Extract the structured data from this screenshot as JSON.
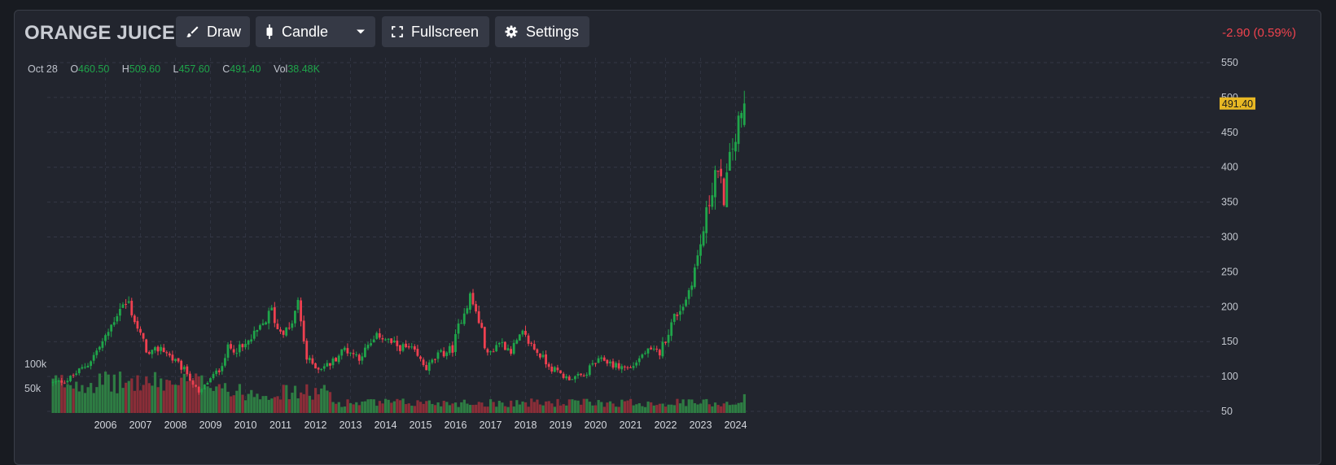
{
  "toolbar": {
    "symbol": "ORANGE JUICE",
    "draw_label": "Draw",
    "candle_label": "Candle",
    "fullscreen_label": "Fullscreen",
    "settings_label": "Settings",
    "change_text": "-2.90 (0.59%)"
  },
  "ohlc": {
    "date": "Oct 28",
    "o_label": "O",
    "o": "460.50",
    "h_label": "H",
    "h": "509.60",
    "l_label": "L",
    "l": "457.60",
    "c_label": "C",
    "c": "491.40",
    "vol_label": "Vol",
    "vol": "38.48K"
  },
  "colors": {
    "up": "#1fa54a",
    "down": "#ef4050",
    "up_volume": "#2e7d43",
    "down_volume": "#8a2e38",
    "price_tag": "#e8b824",
    "change": "#f0434e"
  },
  "chart_data": {
    "type": "candlestick",
    "interval": "monthly",
    "title": "ORANGE JUICE",
    "x_tick_labels": [
      "2006",
      "2007",
      "2008",
      "2009",
      "2010",
      "2011",
      "2012",
      "2013",
      "2014",
      "2015",
      "2016",
      "2017",
      "2018",
      "2019",
      "2020",
      "2021",
      "2022",
      "2023",
      "2024"
    ],
    "y_ticks": [
      50,
      100,
      150,
      200,
      250,
      300,
      350,
      400,
      450,
      500,
      550
    ],
    "ylim": [
      50,
      555
    ],
    "volume_ticks": [
      "50k",
      "100k"
    ],
    "volume_tick_values": [
      50000,
      100000
    ],
    "last_price": "491.40",
    "grid": true,
    "trend_anchors": [
      {
        "date": "2005-01",
        "price": 91
      },
      {
        "date": "2005-06",
        "price": 95
      },
      {
        "date": "2006-01",
        "price": 118
      },
      {
        "date": "2006-07",
        "price": 155
      },
      {
        "date": "2006-12",
        "price": 200
      },
      {
        "date": "2007-03",
        "price": 205
      },
      {
        "date": "2007-06",
        "price": 168
      },
      {
        "date": "2007-10",
        "price": 130
      },
      {
        "date": "2008-02",
        "price": 142
      },
      {
        "date": "2008-06",
        "price": 125
      },
      {
        "date": "2008-11",
        "price": 105
      },
      {
        "date": "2009-03",
        "price": 75
      },
      {
        "date": "2009-06",
        "price": 92
      },
      {
        "date": "2009-10",
        "price": 110
      },
      {
        "date": "2010-01",
        "price": 140
      },
      {
        "date": "2010-06",
        "price": 140
      },
      {
        "date": "2010-12",
        "price": 168
      },
      {
        "date": "2011-04",
        "price": 195
      },
      {
        "date": "2011-06",
        "price": 168
      },
      {
        "date": "2011-10",
        "price": 165
      },
      {
        "date": "2012-01",
        "price": 205
      },
      {
        "date": "2012-04",
        "price": 125
      },
      {
        "date": "2012-08",
        "price": 112
      },
      {
        "date": "2012-12",
        "price": 118
      },
      {
        "date": "2013-05",
        "price": 140
      },
      {
        "date": "2013-10",
        "price": 128
      },
      {
        "date": "2014-05",
        "price": 160
      },
      {
        "date": "2014-10",
        "price": 145
      },
      {
        "date": "2015-04",
        "price": 138
      },
      {
        "date": "2015-09",
        "price": 112
      },
      {
        "date": "2016-01",
        "price": 130
      },
      {
        "date": "2016-06",
        "price": 140
      },
      {
        "date": "2016-09",
        "price": 185
      },
      {
        "date": "2016-12",
        "price": 215
      },
      {
        "date": "2017-03",
        "price": 180
      },
      {
        "date": "2017-06",
        "price": 130
      },
      {
        "date": "2017-10",
        "price": 150
      },
      {
        "date": "2018-02",
        "price": 138
      },
      {
        "date": "2018-06",
        "price": 160
      },
      {
        "date": "2018-10",
        "price": 140
      },
      {
        "date": "2019-04",
        "price": 112
      },
      {
        "date": "2019-09",
        "price": 98
      },
      {
        "date": "2020-03",
        "price": 100
      },
      {
        "date": "2020-06",
        "price": 118
      },
      {
        "date": "2020-10",
        "price": 124
      },
      {
        "date": "2021-02",
        "price": 115
      },
      {
        "date": "2021-07",
        "price": 112
      },
      {
        "date": "2021-12",
        "price": 135
      },
      {
        "date": "2022-05",
        "price": 135
      },
      {
        "date": "2022-10",
        "price": 185
      },
      {
        "date": "2023-02",
        "price": 210
      },
      {
        "date": "2023-06",
        "price": 270
      },
      {
        "date": "2023-09",
        "price": 330
      },
      {
        "date": "2023-12",
        "price": 395
      },
      {
        "date": "2024-03",
        "price": 360
      },
      {
        "date": "2024-06",
        "price": 430
      },
      {
        "date": "2024-09",
        "price": 470
      },
      {
        "date": "2024-10",
        "price": 491.4
      }
    ]
  }
}
